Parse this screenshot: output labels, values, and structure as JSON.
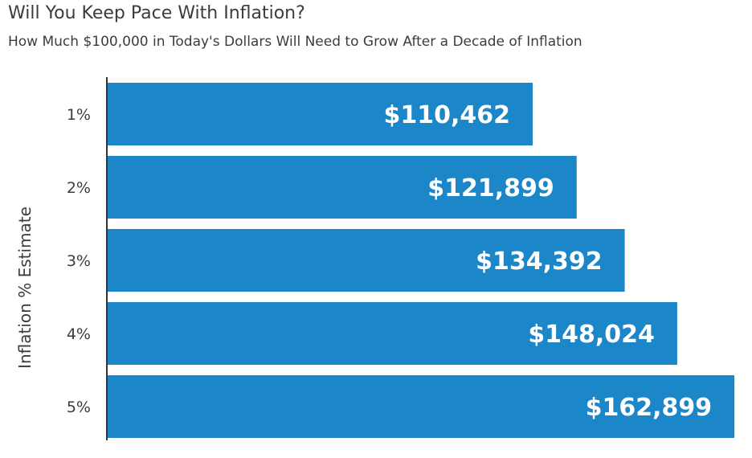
{
  "chart_data": {
    "type": "bar",
    "orientation": "horizontal",
    "title": "Will You Keep Pace With Inflation?",
    "subtitle": "How Much $100,000 in Today's Dollars Will Need to Grow After a Decade of Inflation",
    "ylabel": "Inflation % Estimate",
    "xlabel": "",
    "categories": [
      "1%",
      "2%",
      "3%",
      "4%",
      "5%"
    ],
    "values": [
      110462,
      121899,
      134392,
      148024,
      162899
    ],
    "value_labels": [
      "$110,462",
      "$121,899",
      "$134,392",
      "$148,024",
      "$162,899"
    ],
    "bar_color": "#1b87c9",
    "grid": false,
    "legend": "none"
  }
}
